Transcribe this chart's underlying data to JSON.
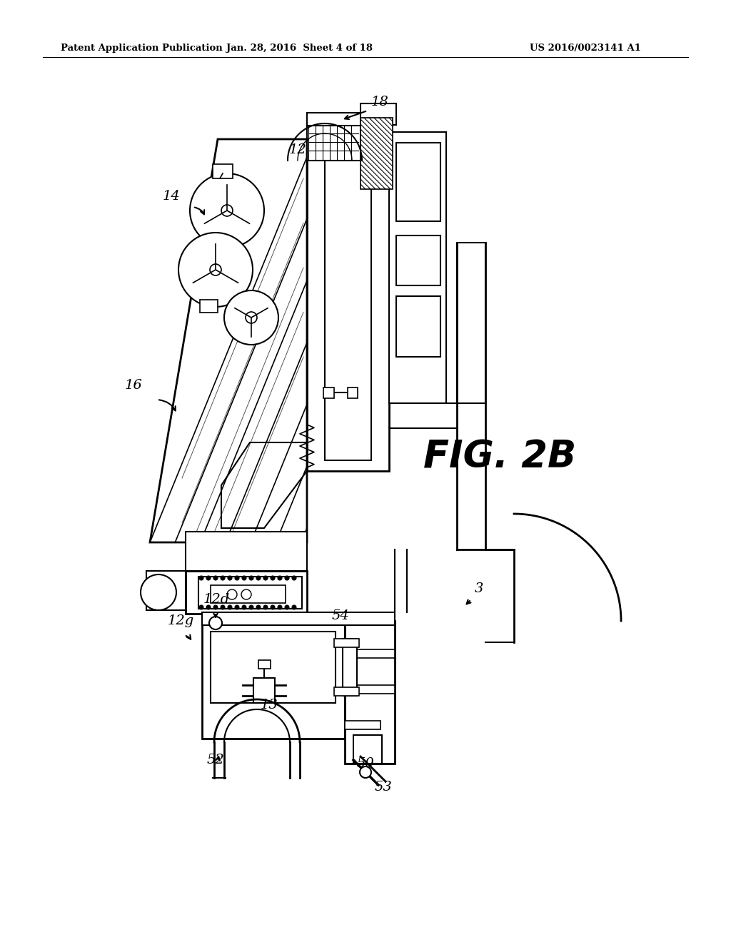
{
  "bg_color": "#ffffff",
  "line_color": "#000000",
  "header_left": "Patent Application Publication",
  "header_mid": "Jan. 28, 2016  Sheet 4 of 18",
  "header_right": "US 2016/0023141 A1",
  "fig_label": "FIG. 2B"
}
